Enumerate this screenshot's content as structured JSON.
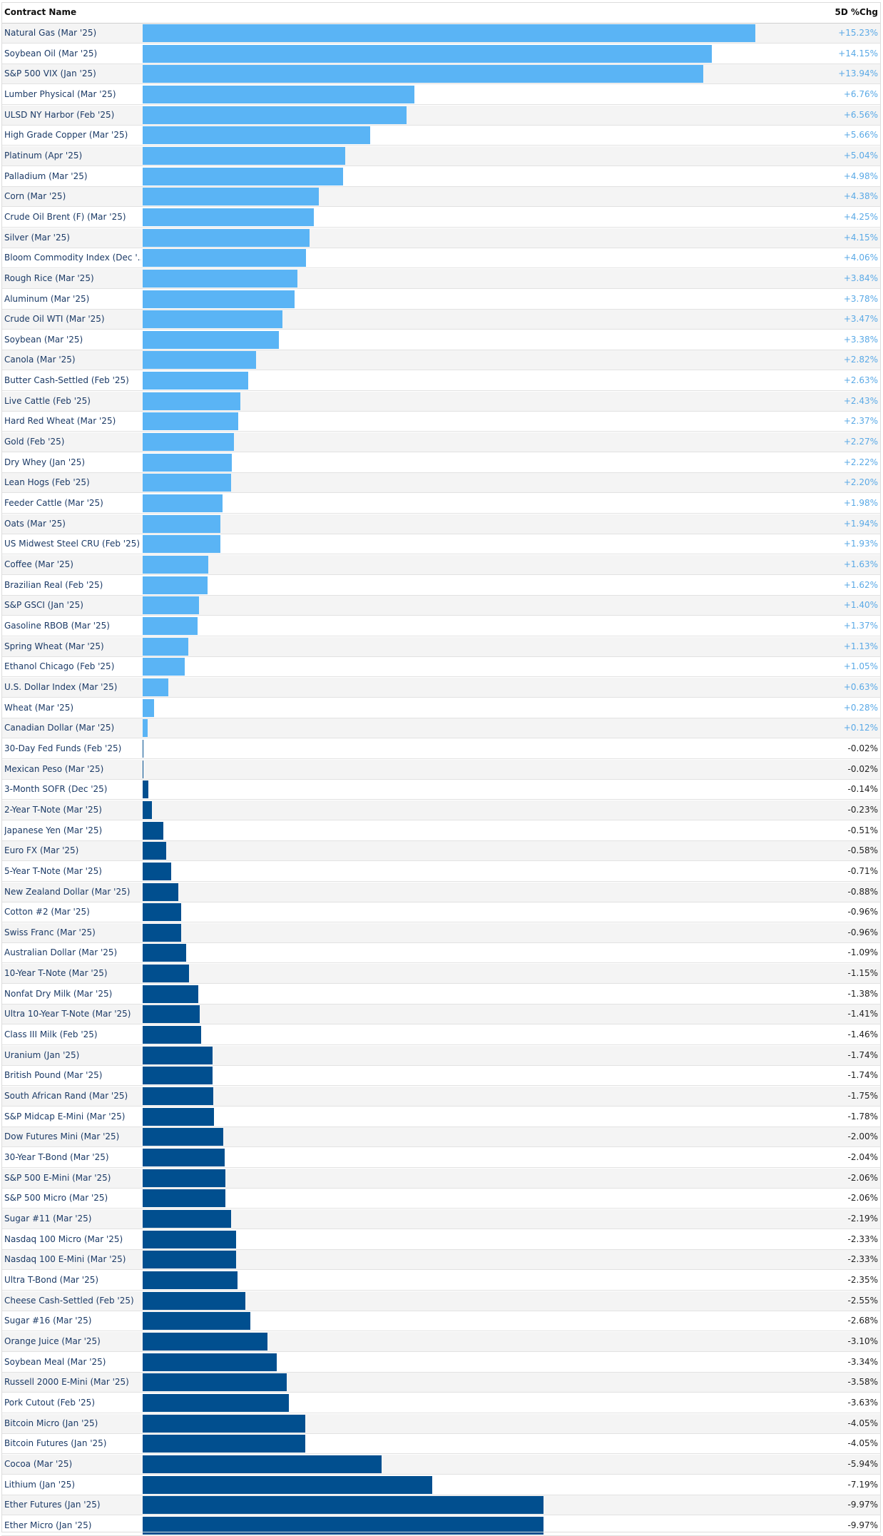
{
  "header": {
    "name_label": "Contract Name",
    "change_label": "5D %Chg"
  },
  "colors": {
    "positive_bar": "#5ab4f5",
    "negative_bar": "#014f8f",
    "positive_text": "#5aa9e6",
    "negative_text": "#222222"
  },
  "chart_data": {
    "type": "bar",
    "orientation": "horizontal",
    "xlabel": "5D %Chg",
    "ylabel": "Contract Name",
    "xlim": [
      0,
      16
    ],
    "grid": false,
    "categories": [
      "Natural Gas (Mar '25)",
      "Soybean Oil (Mar '25)",
      "S&P 500 VIX (Jan '25)",
      "Lumber Physical (Mar '25)",
      "ULSD NY Harbor (Feb '25)",
      "High Grade Copper (Mar '25)",
      "Platinum (Apr '25)",
      "Palladium (Mar '25)",
      "Corn (Mar '25)",
      "Crude Oil Brent (F) (Mar '25)",
      "Silver (Mar '25)",
      "Bloom Commodity Index (Dec '...",
      "Rough Rice (Mar '25)",
      "Aluminum (Mar '25)",
      "Crude Oil WTI (Mar '25)",
      "Soybean (Mar '25)",
      "Canola (Mar '25)",
      "Butter Cash-Settled (Feb '25)",
      "Live Cattle (Feb '25)",
      "Hard Red Wheat (Mar '25)",
      "Gold (Feb '25)",
      "Dry Whey (Jan '25)",
      "Lean Hogs (Feb '25)",
      "Feeder Cattle (Mar '25)",
      "Oats (Mar '25)",
      "US Midwest Steel CRU (Feb '25)",
      "Coffee (Mar '25)",
      "Brazilian Real (Feb '25)",
      "S&P GSCI (Jan '25)",
      "Gasoline RBOB (Mar '25)",
      "Spring Wheat (Mar '25)",
      "Ethanol Chicago (Feb '25)",
      "U.S. Dollar Index (Mar '25)",
      "Wheat (Mar '25)",
      "Canadian Dollar (Mar '25)",
      "30-Day Fed Funds (Feb '25)",
      "Mexican Peso (Mar '25)",
      "3-Month SOFR (Dec '25)",
      "2-Year T-Note (Mar '25)",
      "Japanese Yen (Mar '25)",
      "Euro FX (Mar '25)",
      "5-Year T-Note (Mar '25)",
      "New Zealand Dollar (Mar '25)",
      "Cotton #2 (Mar '25)",
      "Swiss Franc (Mar '25)",
      "Australian Dollar (Mar '25)",
      "10-Year T-Note (Mar '25)",
      "Nonfat Dry Milk (Mar '25)",
      "Ultra 10-Year T-Note (Mar '25)",
      "Class III Milk (Feb '25)",
      "Uranium (Jan '25)",
      "British Pound (Mar '25)",
      "South African Rand (Mar '25)",
      "S&P Midcap E-Mini (Mar '25)",
      "Dow Futures Mini (Mar '25)",
      "30-Year T-Bond (Mar '25)",
      "S&P 500 E-Mini (Mar '25)",
      "S&P 500 Micro (Mar '25)",
      "Sugar #11 (Mar '25)",
      "Nasdaq 100 Micro (Mar '25)",
      "Nasdaq 100 E-Mini (Mar '25)",
      "Ultra T-Bond (Mar '25)",
      "Cheese Cash-Settled (Feb '25)",
      "Sugar #16 (Mar '25)",
      "Orange Juice (Mar '25)",
      "Soybean Meal (Mar '25)",
      "Russell 2000 E-Mini (Mar '25)",
      "Pork Cutout (Feb '25)",
      "Bitcoin Micro (Jan '25)",
      "Bitcoin Futures (Jan '25)",
      "Cocoa (Mar '25)",
      "Lithium (Jan '25)",
      "Ether Futures (Jan '25)",
      "Ether Micro (Jan '25)"
    ],
    "values": [
      15.23,
      14.15,
      13.94,
      6.76,
      6.56,
      5.66,
      5.04,
      4.98,
      4.38,
      4.25,
      4.15,
      4.06,
      3.84,
      3.78,
      3.47,
      3.38,
      2.82,
      2.63,
      2.43,
      2.37,
      2.27,
      2.22,
      2.2,
      1.98,
      1.94,
      1.93,
      1.63,
      1.62,
      1.4,
      1.37,
      1.13,
      1.05,
      0.63,
      0.28,
      0.12,
      -0.02,
      -0.02,
      -0.14,
      -0.23,
      -0.51,
      -0.58,
      -0.71,
      -0.88,
      -0.96,
      -0.96,
      -1.09,
      -1.15,
      -1.38,
      -1.41,
      -1.46,
      -1.74,
      -1.74,
      -1.75,
      -1.78,
      -2.0,
      -2.04,
      -2.06,
      -2.06,
      -2.19,
      -2.33,
      -2.33,
      -2.35,
      -2.55,
      -2.68,
      -3.1,
      -3.34,
      -3.58,
      -3.63,
      -4.05,
      -4.05,
      -5.94,
      -7.19,
      -9.97,
      -9.97
    ],
    "value_labels": [
      "+15.23%",
      "+14.15%",
      "+13.94%",
      "+6.76%",
      "+6.56%",
      "+5.66%",
      "+5.04%",
      "+4.98%",
      "+4.38%",
      "+4.25%",
      "+4.15%",
      "+4.06%",
      "+3.84%",
      "+3.78%",
      "+3.47%",
      "+3.38%",
      "+2.82%",
      "+2.63%",
      "+2.43%",
      "+2.37%",
      "+2.27%",
      "+2.22%",
      "+2.20%",
      "+1.98%",
      "+1.94%",
      "+1.93%",
      "+1.63%",
      "+1.62%",
      "+1.40%",
      "+1.37%",
      "+1.13%",
      "+1.05%",
      "+0.63%",
      "+0.28%",
      "+0.12%",
      "-0.02%",
      "-0.02%",
      "-0.14%",
      "-0.23%",
      "-0.51%",
      "-0.58%",
      "-0.71%",
      "-0.88%",
      "-0.96%",
      "-0.96%",
      "-1.09%",
      "-1.15%",
      "-1.38%",
      "-1.41%",
      "-1.46%",
      "-1.74%",
      "-1.74%",
      "-1.75%",
      "-1.78%",
      "-2.00%",
      "-2.04%",
      "-2.06%",
      "-2.06%",
      "-2.19%",
      "-2.33%",
      "-2.33%",
      "-2.35%",
      "-2.55%",
      "-2.68%",
      "-3.10%",
      "-3.34%",
      "-3.58%",
      "-3.63%",
      "-4.05%",
      "-4.05%",
      "-5.94%",
      "-7.19%",
      "-9.97%",
      "-9.97%"
    ]
  }
}
